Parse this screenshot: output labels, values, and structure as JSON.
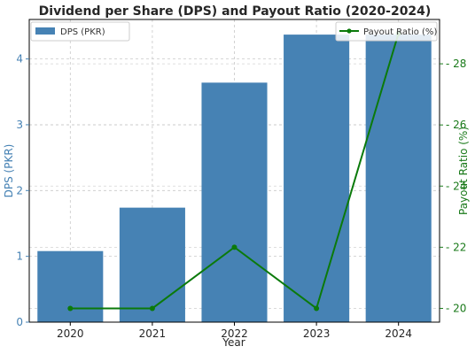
{
  "chart_data": {
    "type": "bar+line",
    "title": "Dividend per Share (DPS) and Payout Ratio (2020-2024)",
    "xlabel": "Year",
    "categories": [
      "2020",
      "2021",
      "2022",
      "2023",
      "2024"
    ],
    "series": [
      {
        "name": "DPS (PKR)",
        "type": "bar",
        "axis": "left",
        "values": [
          1.08,
          1.74,
          3.64,
          4.37,
          4.37
        ]
      },
      {
        "name": "Payout Ratio (%)",
        "type": "line",
        "axis": "right",
        "values": [
          20.0,
          20.0,
          22.0,
          20.0,
          29.0
        ]
      }
    ],
    "y_left": {
      "label": "DPS (PKR)",
      "ylim": [
        0,
        4.6
      ],
      "ticks": [
        "0",
        "1",
        "2",
        "3",
        "4"
      ],
      "color": "#4682b4"
    },
    "y_right": {
      "label": "Payout Ratio (%)",
      "ylim": [
        19.55,
        29.45
      ],
      "ticks": [
        "20",
        "22",
        "24",
        "26",
        "28"
      ],
      "color": "#1a7a1a"
    },
    "grid": true,
    "legend": {
      "bar_position": "top-left",
      "line_position": "top-right"
    },
    "colors": {
      "bar": "#4682b4",
      "line": "#0b7a0b"
    }
  }
}
